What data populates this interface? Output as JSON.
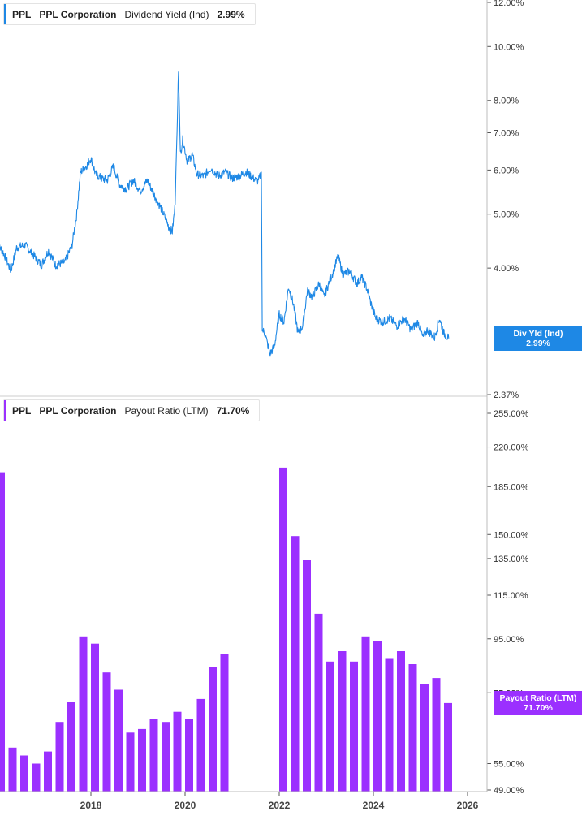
{
  "colors": {
    "yield": "#1e88e5",
    "payout": "#9b30ff",
    "axis": "#555555",
    "grid": "#e6e6e6"
  },
  "legend_top": {
    "ticker": "PPL",
    "name": "PPL Corporation",
    "metric": "Dividend Yield (Ind)",
    "value": "2.99%"
  },
  "legend_bottom": {
    "ticker": "PPL",
    "name": "PPL Corporation",
    "metric": "Payout Ratio (LTM)",
    "value": "71.70%"
  },
  "tag_top": {
    "label": "Div Yld (Ind)",
    "value": "2.99%"
  },
  "tag_bottom": {
    "label": "Payout Ratio (LTM)",
    "value": "71.70%"
  },
  "chart_data": [
    {
      "type": "line",
      "series": [
        {
          "name": "Dividend Yield (Ind)",
          "x_unit": "year",
          "y_unit": "%",
          "points": [
            [
              2016.0,
              4.45
            ],
            [
              2016.15,
              4.25
            ],
            [
              2016.3,
              3.95
            ],
            [
              2016.42,
              4.35
            ],
            [
              2016.6,
              4.4
            ],
            [
              2016.75,
              4.25
            ],
            [
              2016.95,
              4.05
            ],
            [
              2017.1,
              4.3
            ],
            [
              2017.25,
              4.05
            ],
            [
              2017.45,
              4.1
            ],
            [
              2017.6,
              4.4
            ],
            [
              2017.7,
              5.0
            ],
            [
              2017.78,
              5.95
            ],
            [
              2017.9,
              6.1
            ],
            [
              2018.0,
              6.3
            ],
            [
              2018.1,
              5.9
            ],
            [
              2018.22,
              5.8
            ],
            [
              2018.35,
              5.75
            ],
            [
              2018.48,
              6.1
            ],
            [
              2018.6,
              5.65
            ],
            [
              2018.75,
              5.55
            ],
            [
              2018.9,
              5.75
            ],
            [
              2019.05,
              5.5
            ],
            [
              2019.2,
              5.75
            ],
            [
              2019.35,
              5.4
            ],
            [
              2019.5,
              5.1
            ],
            [
              2019.65,
              4.75
            ],
            [
              2019.73,
              4.65
            ],
            [
              2019.79,
              5.2
            ],
            [
              2019.83,
              7.1
            ],
            [
              2019.86,
              9.0
            ],
            [
              2019.9,
              6.4
            ],
            [
              2019.95,
              6.8
            ],
            [
              2020.05,
              6.2
            ],
            [
              2020.15,
              6.4
            ],
            [
              2020.25,
              5.9
            ],
            [
              2020.4,
              5.85
            ],
            [
              2020.55,
              6.05
            ],
            [
              2020.7,
              5.85
            ],
            [
              2020.85,
              5.95
            ],
            [
              2021.0,
              5.8
            ],
            [
              2021.15,
              5.85
            ],
            [
              2021.3,
              5.95
            ],
            [
              2021.4,
              5.85
            ],
            [
              2021.55,
              5.7
            ],
            [
              2021.62,
              5.95
            ],
            [
              2021.64,
              3.1
            ],
            [
              2021.7,
              3.05
            ],
            [
              2021.8,
              2.8
            ],
            [
              2021.9,
              2.9
            ],
            [
              2022.0,
              3.3
            ],
            [
              2022.1,
              3.2
            ],
            [
              2022.2,
              3.7
            ],
            [
              2022.3,
              3.45
            ],
            [
              2022.4,
              3.05
            ],
            [
              2022.5,
              3.15
            ],
            [
              2022.6,
              3.65
            ],
            [
              2022.7,
              3.55
            ],
            [
              2022.85,
              3.75
            ],
            [
              2022.95,
              3.55
            ],
            [
              2023.05,
              3.75
            ],
            [
              2023.15,
              3.95
            ],
            [
              2023.25,
              4.2
            ],
            [
              2023.35,
              3.9
            ],
            [
              2023.5,
              3.95
            ],
            [
              2023.65,
              3.75
            ],
            [
              2023.75,
              3.85
            ],
            [
              2023.85,
              3.7
            ],
            [
              2023.95,
              3.45
            ],
            [
              2024.05,
              3.25
            ],
            [
              2024.2,
              3.2
            ],
            [
              2024.35,
              3.25
            ],
            [
              2024.5,
              3.15
            ],
            [
              2024.65,
              3.25
            ],
            [
              2024.8,
              3.1
            ],
            [
              2024.95,
              3.2
            ],
            [
              2025.05,
              3.0
            ],
            [
              2025.15,
              3.1
            ],
            [
              2025.3,
              3.0
            ],
            [
              2025.4,
              3.25
            ],
            [
              2025.5,
              3.05
            ],
            [
              2025.6,
              2.99
            ]
          ]
        }
      ],
      "y_ticks": [
        "12.00%",
        "10.00%",
        "8.00%",
        "7.00%",
        "6.00%",
        "5.00%",
        "4.00%",
        "2.37%"
      ],
      "y_tick_values": [
        12.0,
        10.0,
        8.0,
        7.0,
        6.0,
        5.0,
        4.0,
        2.37
      ],
      "y_hidden_tick_label": "3.0",
      "ylim": [
        2.37,
        12.0
      ],
      "y_scale": "log",
      "last_value": 2.99
    },
    {
      "type": "bar",
      "series": [
        {
          "name": "Payout Ratio (LTM)",
          "y_unit": "%",
          "points": [
            [
              2016.12,
              197
            ],
            [
              2016.37,
              59
            ],
            [
              2016.62,
              57
            ],
            [
              2016.87,
              55
            ],
            [
              2017.12,
              58
            ],
            [
              2017.37,
              66
            ],
            [
              2017.62,
              72
            ],
            [
              2017.87,
              96
            ],
            [
              2018.12,
              93
            ],
            [
              2018.37,
              82
            ],
            [
              2018.62,
              76
            ],
            [
              2018.87,
              63
            ],
            [
              2019.12,
              64
            ],
            [
              2019.37,
              67
            ],
            [
              2019.62,
              66
            ],
            [
              2019.87,
              69
            ],
            [
              2020.12,
              67
            ],
            [
              2020.37,
              73
            ],
            [
              2020.62,
              84
            ],
            [
              2020.87,
              89
            ],
            [
              2022.12,
              201
            ],
            [
              2022.37,
              149
            ],
            [
              2022.62,
              134
            ],
            [
              2022.87,
              106
            ],
            [
              2023.12,
              86
            ],
            [
              2023.37,
              90
            ],
            [
              2023.62,
              86
            ],
            [
              2023.87,
              96
            ],
            [
              2024.12,
              94
            ],
            [
              2024.37,
              87
            ],
            [
              2024.62,
              90
            ],
            [
              2024.87,
              85
            ],
            [
              2025.12,
              78
            ],
            [
              2025.37,
              80
            ],
            [
              2025.62,
              71.7
            ]
          ]
        }
      ],
      "y_ticks": [
        "255.00%",
        "220.00%",
        "185.00%",
        "150.00%",
        "135.00%",
        "115.00%",
        "95.00%",
        "75.00%",
        "55.00%",
        "49.00%"
      ],
      "y_tick_values": [
        255,
        220,
        185,
        150,
        135,
        115,
        95,
        75,
        55,
        49
      ],
      "y_hidden_tick_label": "75.00%",
      "ylim": [
        49,
        255
      ],
      "y_scale": "log",
      "last_value": 71.7
    }
  ],
  "x_axis": {
    "ticks": [
      "2018",
      "2020",
      "2022",
      "2024",
      "2026"
    ],
    "tick_values": [
      2018,
      2020,
      2022,
      2024,
      2026
    ]
  }
}
